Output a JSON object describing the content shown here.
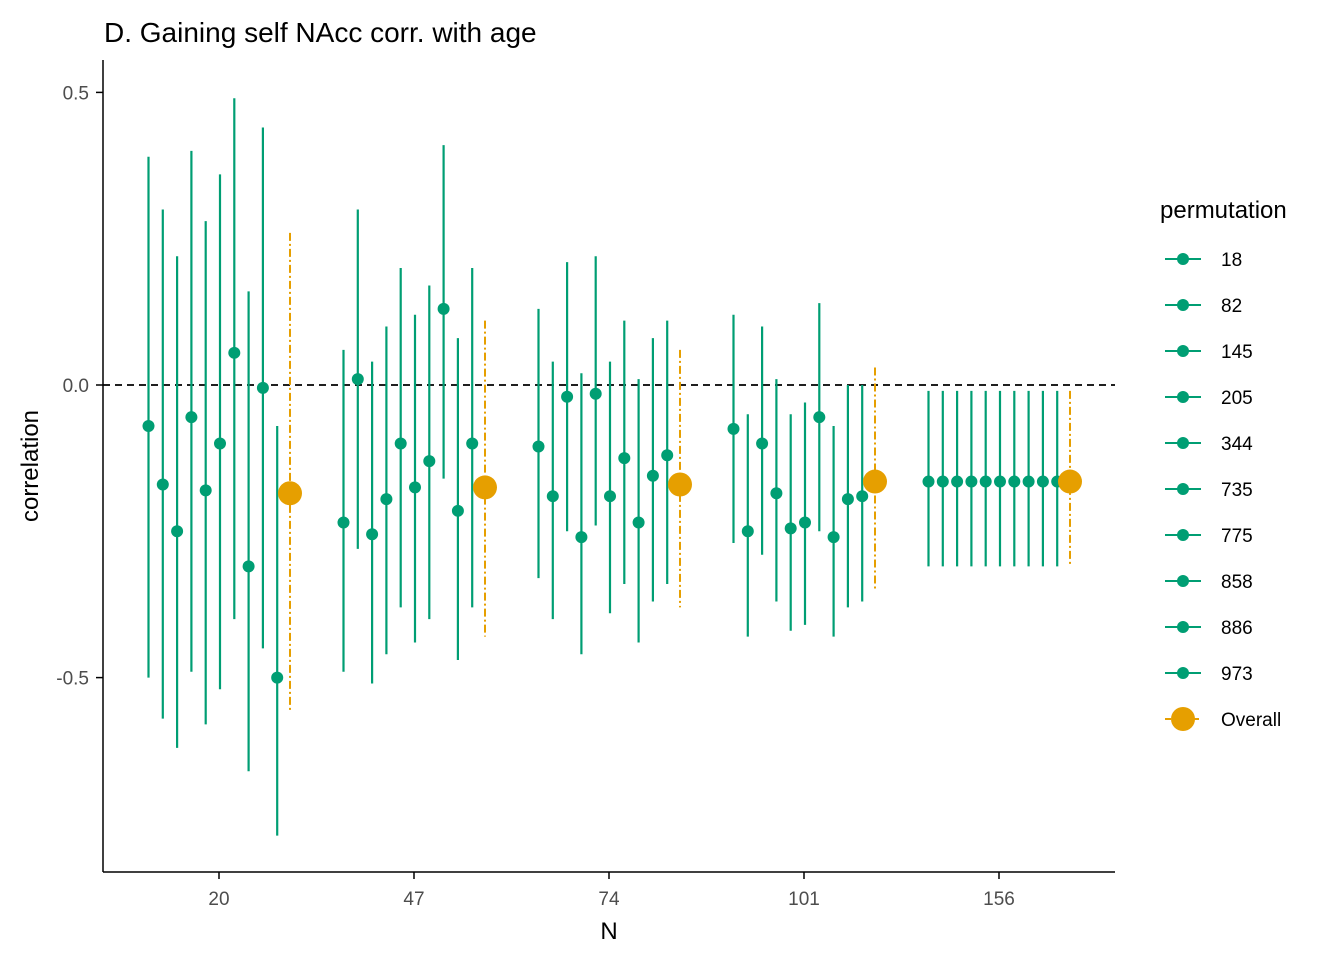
{
  "chart_data": {
    "type": "scatter",
    "title": "D. Gaining self NAcc corr. with age",
    "xlabel": "N",
    "ylabel": "correlation",
    "ylim": [
      -0.83,
      0.55
    ],
    "yticks": [
      0.5,
      0.0,
      -0.5
    ],
    "ytick_labels": [
      "0.5",
      "0.0",
      "-0.5"
    ],
    "categories": [
      "20",
      "47",
      "74",
      "101",
      "156"
    ],
    "reference_line": 0.0,
    "grid": false,
    "legend": {
      "title": "permutation",
      "position": "right"
    },
    "colors": {
      "permutation": "#009E73",
      "overall": "#E69F00",
      "reference": "#000000",
      "axis": "#000000",
      "tick_text": "#4d4d4d"
    },
    "permutation_labels": [
      "18",
      "82",
      "145",
      "205",
      "344",
      "735",
      "775",
      "858",
      "886",
      "973"
    ],
    "overall_label": "Overall",
    "groups": [
      {
        "N": "20",
        "points": [
          {
            "perm": "18",
            "est": -0.07,
            "lo": -0.5,
            "hi": 0.39
          },
          {
            "perm": "82",
            "est": -0.17,
            "lo": -0.57,
            "hi": 0.3
          },
          {
            "perm": "145",
            "est": -0.25,
            "lo": -0.62,
            "hi": 0.22
          },
          {
            "perm": "205",
            "est": -0.055,
            "lo": -0.49,
            "hi": 0.4
          },
          {
            "perm": "344",
            "est": -0.18,
            "lo": -0.58,
            "hi": 0.28
          },
          {
            "perm": "735",
            "est": -0.1,
            "lo": -0.52,
            "hi": 0.36
          },
          {
            "perm": "775",
            "est": 0.055,
            "lo": -0.4,
            "hi": 0.49
          },
          {
            "perm": "858",
            "est": -0.31,
            "lo": -0.66,
            "hi": 0.16
          },
          {
            "perm": "886",
            "est": -0.005,
            "lo": -0.45,
            "hi": 0.44
          },
          {
            "perm": "973",
            "est": -0.5,
            "lo": -0.77,
            "hi": -0.07
          }
        ],
        "overall": {
          "est": -0.185,
          "lo": -0.56,
          "hi": 0.26
        }
      },
      {
        "N": "47",
        "points": [
          {
            "perm": "18",
            "est": -0.235,
            "lo": -0.49,
            "hi": 0.06
          },
          {
            "perm": "82",
            "est": 0.01,
            "lo": -0.28,
            "hi": 0.3
          },
          {
            "perm": "145",
            "est": -0.255,
            "lo": -0.51,
            "hi": 0.04
          },
          {
            "perm": "205",
            "est": -0.195,
            "lo": -0.46,
            "hi": 0.1
          },
          {
            "perm": "344",
            "est": -0.1,
            "lo": -0.38,
            "hi": 0.2
          },
          {
            "perm": "735",
            "est": -0.175,
            "lo": -0.44,
            "hi": 0.12
          },
          {
            "perm": "775",
            "est": -0.13,
            "lo": -0.4,
            "hi": 0.17
          },
          {
            "perm": "858",
            "est": 0.13,
            "lo": -0.16,
            "hi": 0.41
          },
          {
            "perm": "886",
            "est": -0.215,
            "lo": -0.47,
            "hi": 0.08
          },
          {
            "perm": "973",
            "est": -0.1,
            "lo": -0.38,
            "hi": 0.2
          }
        ],
        "overall": {
          "est": -0.175,
          "lo": -0.43,
          "hi": 0.11
        }
      },
      {
        "N": "74",
        "points": [
          {
            "perm": "18",
            "est": -0.105,
            "lo": -0.33,
            "hi": 0.13
          },
          {
            "perm": "82",
            "est": -0.19,
            "lo": -0.4,
            "hi": 0.04
          },
          {
            "perm": "145",
            "est": -0.02,
            "lo": -0.25,
            "hi": 0.21
          },
          {
            "perm": "205",
            "est": -0.26,
            "lo": -0.46,
            "hi": 0.02
          },
          {
            "perm": "344",
            "est": -0.015,
            "lo": -0.24,
            "hi": 0.22
          },
          {
            "perm": "735",
            "est": -0.19,
            "lo": -0.39,
            "hi": 0.04
          },
          {
            "perm": "775",
            "est": -0.125,
            "lo": -0.34,
            "hi": 0.11
          },
          {
            "perm": "858",
            "est": -0.235,
            "lo": -0.44,
            "hi": 0.01
          },
          {
            "perm": "886",
            "est": -0.155,
            "lo": -0.37,
            "hi": 0.08
          },
          {
            "perm": "973",
            "est": -0.12,
            "lo": -0.34,
            "hi": 0.11
          }
        ],
        "overall": {
          "est": -0.17,
          "lo": -0.38,
          "hi": 0.06
        }
      },
      {
        "N": "101",
        "points": [
          {
            "perm": "18",
            "est": -0.075,
            "lo": -0.27,
            "hi": 0.12
          },
          {
            "perm": "82",
            "est": -0.25,
            "lo": -0.43,
            "hi": -0.05
          },
          {
            "perm": "145",
            "est": -0.1,
            "lo": -0.29,
            "hi": 0.1
          },
          {
            "perm": "205",
            "est": -0.185,
            "lo": -0.37,
            "hi": 0.01
          },
          {
            "perm": "344",
            "est": -0.245,
            "lo": -0.42,
            "hi": -0.05
          },
          {
            "perm": "735",
            "est": -0.235,
            "lo": -0.41,
            "hi": -0.03
          },
          {
            "perm": "775",
            "est": -0.055,
            "lo": -0.25,
            "hi": 0.14
          },
          {
            "perm": "858",
            "est": -0.26,
            "lo": -0.43,
            "hi": -0.07
          },
          {
            "perm": "886",
            "est": -0.195,
            "lo": -0.38,
            "hi": 0.0
          },
          {
            "perm": "973",
            "est": -0.19,
            "lo": -0.37,
            "hi": 0.0
          }
        ],
        "overall": {
          "est": -0.165,
          "lo": -0.35,
          "hi": 0.03
        }
      },
      {
        "N": "156",
        "points": [
          {
            "perm": "18",
            "est": -0.165,
            "lo": -0.31,
            "hi": -0.01
          },
          {
            "perm": "82",
            "est": -0.165,
            "lo": -0.31,
            "hi": -0.01
          },
          {
            "perm": "145",
            "est": -0.165,
            "lo": -0.31,
            "hi": -0.01
          },
          {
            "perm": "205",
            "est": -0.165,
            "lo": -0.31,
            "hi": -0.01
          },
          {
            "perm": "344",
            "est": -0.165,
            "lo": -0.31,
            "hi": -0.01
          },
          {
            "perm": "735",
            "est": -0.165,
            "lo": -0.31,
            "hi": -0.01
          },
          {
            "perm": "775",
            "est": -0.165,
            "lo": -0.31,
            "hi": -0.01
          },
          {
            "perm": "858",
            "est": -0.165,
            "lo": -0.31,
            "hi": -0.01
          },
          {
            "perm": "886",
            "est": -0.165,
            "lo": -0.31,
            "hi": -0.01
          },
          {
            "perm": "973",
            "est": -0.165,
            "lo": -0.31,
            "hi": -0.01
          }
        ],
        "overall": {
          "est": -0.165,
          "lo": -0.31,
          "hi": -0.01
        }
      }
    ]
  }
}
